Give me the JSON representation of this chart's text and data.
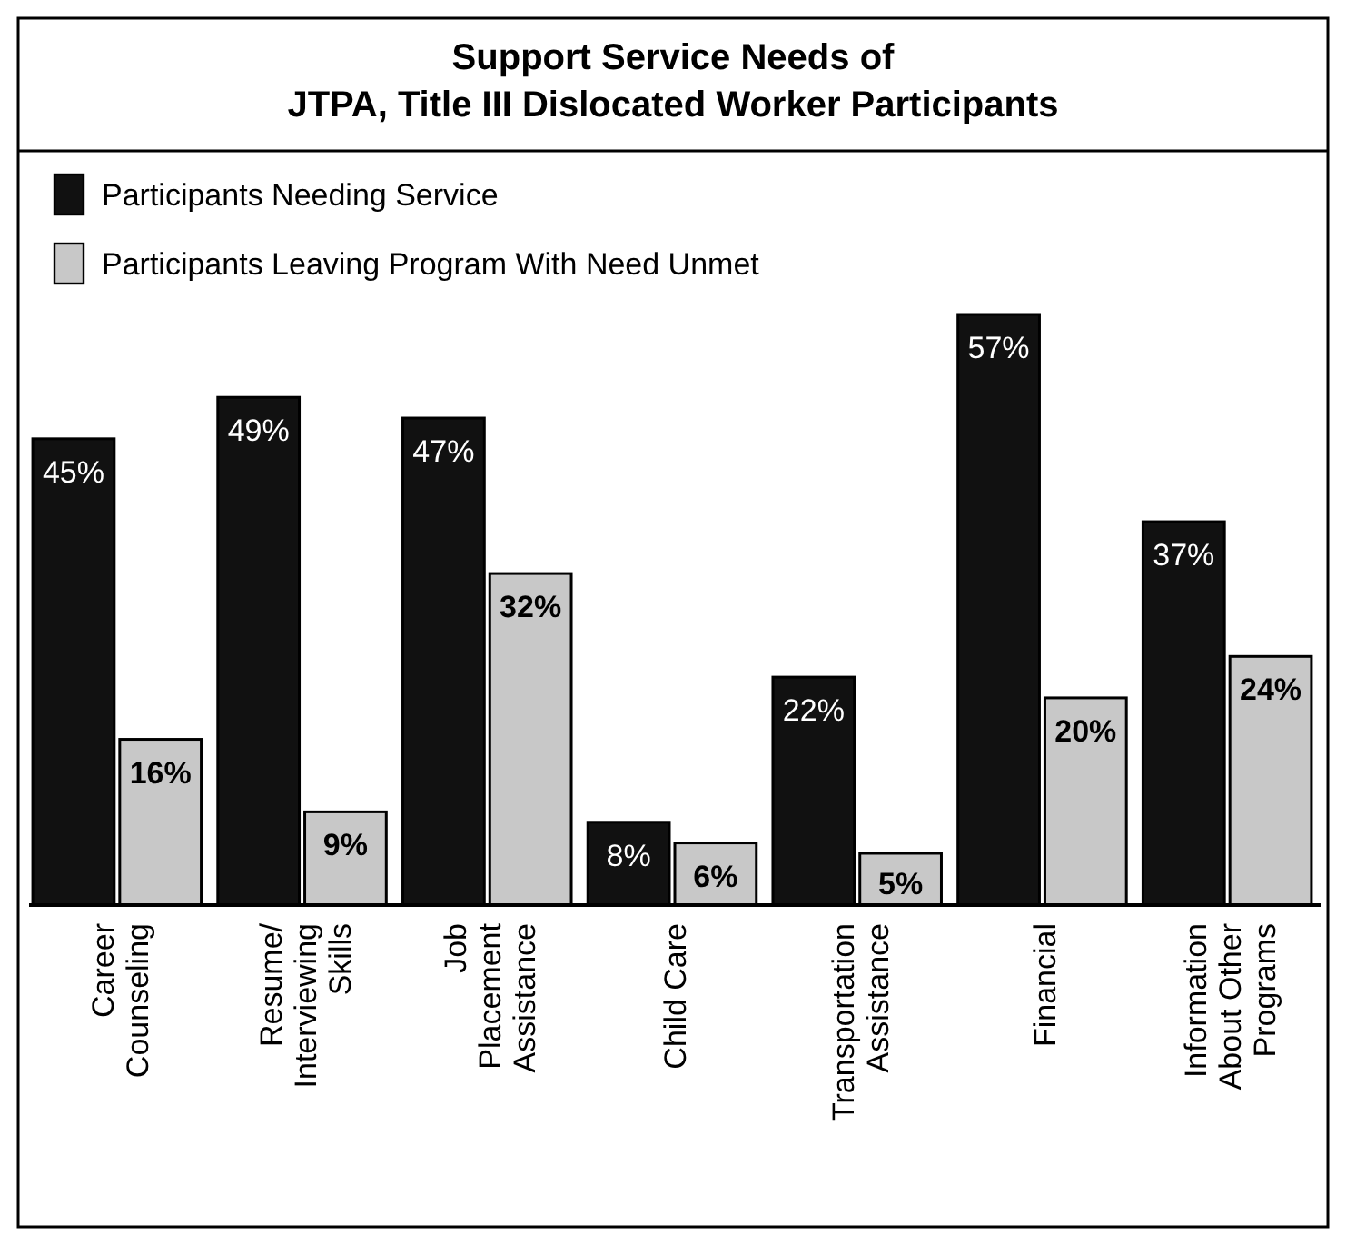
{
  "chart_data": {
    "type": "bar",
    "title": "Support Service Needs of\nJTPA, Title III Dislocated Worker Participants",
    "categories": [
      "Career Counseling",
      "Resume/ Interviewing Skills",
      "Job Placement Assistance",
      "Child Care",
      "Transportation Assistance",
      "Financial",
      "Information About Other Programs"
    ],
    "series": [
      {
        "name": "Participants Needing Service",
        "color": "#111111",
        "values": [
          45,
          49,
          47,
          8,
          22,
          57,
          37
        ],
        "value_labels": [
          "45%",
          "49%",
          "47%",
          "8%",
          "22%",
          "57%",
          "37%"
        ]
      },
      {
        "name": "Participants Leaving Program With Need Unmet",
        "color": "#c8c8c8",
        "values": [
          16,
          9,
          32,
          6,
          5,
          20,
          24
        ],
        "value_labels": [
          "16%",
          "9%",
          "32%",
          "6%",
          "5%",
          "20%",
          "24%"
        ]
      }
    ],
    "legend": "top left",
    "grid": false
  }
}
